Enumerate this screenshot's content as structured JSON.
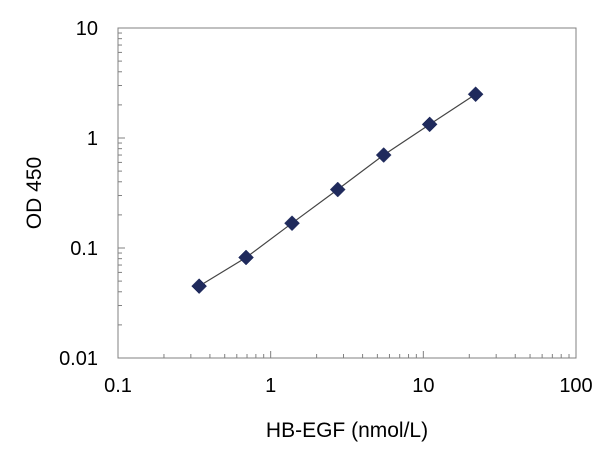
{
  "chart_data": {
    "type": "scatter",
    "title": "",
    "xlabel": "HB-EGF (nmol/L)",
    "ylabel": "OD 450",
    "xscale": "log",
    "yscale": "log",
    "xlim": [
      0.1,
      100
    ],
    "ylim": [
      0.01,
      10
    ],
    "grid": false,
    "legend": "none",
    "x_ticks": [
      {
        "value": 0.1,
        "label": "0.1"
      },
      {
        "value": 1,
        "label": "1"
      },
      {
        "value": 10,
        "label": "10"
      },
      {
        "value": 100,
        "label": "100"
      }
    ],
    "y_ticks": [
      {
        "value": 0.01,
        "label": "0.01"
      },
      {
        "value": 0.1,
        "label": "0.1"
      },
      {
        "value": 1,
        "label": "1"
      },
      {
        "value": 10,
        "label": "10"
      }
    ],
    "series": [
      {
        "marker": "diamond",
        "color": "#1f2a5c",
        "line_color": "#444444",
        "x": [
          0.34,
          0.69,
          1.38,
          2.75,
          5.5,
          11,
          22
        ],
        "y": [
          0.045,
          0.082,
          0.168,
          0.34,
          0.7,
          1.33,
          2.5
        ]
      }
    ]
  }
}
